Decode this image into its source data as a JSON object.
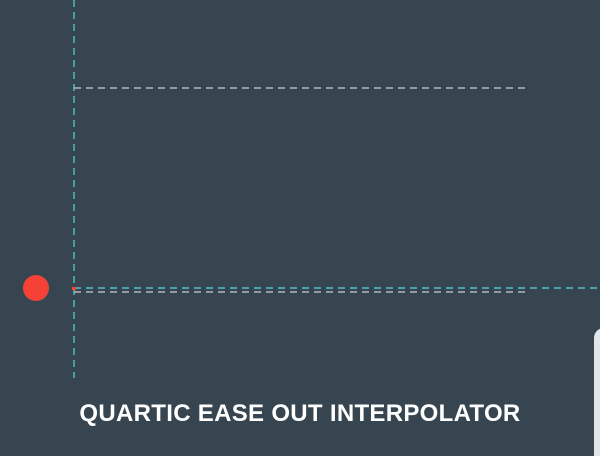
{
  "caption": "QUARTIC EASE OUT INTERPOLATOR",
  "interpolator": {
    "name": "quartic-ease-out",
    "progress": 0
  },
  "colors": {
    "background": "#36454f",
    "axis": "#4fc3c9",
    "guide": "#b0b8bf",
    "ball": "#f44336",
    "caption": "#ffffff"
  }
}
